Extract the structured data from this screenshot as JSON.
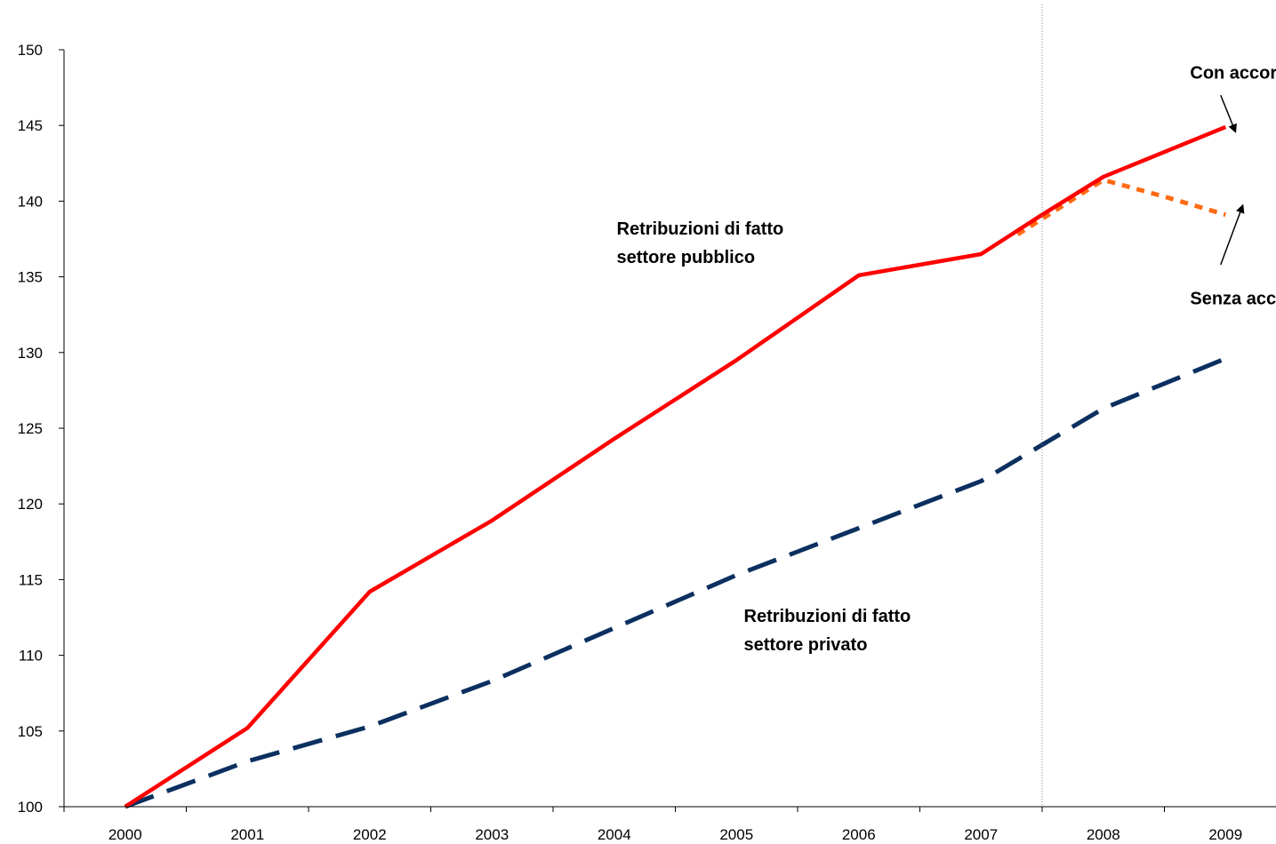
{
  "chart_data": {
    "type": "line",
    "categories": [
      "2000",
      "2001",
      "2002",
      "2003",
      "2004",
      "2005",
      "2006",
      "2007",
      "2008",
      "2009"
    ],
    "ylim": [
      100,
      150
    ],
    "yticks": [
      100,
      105,
      110,
      115,
      120,
      125,
      130,
      135,
      140,
      145,
      150
    ],
    "grid": false,
    "series": [
      {
        "id": "pubblico",
        "color": "#ff0000",
        "style": "solid",
        "x": [
          0,
          1,
          2,
          3,
          4,
          5,
          6,
          7,
          7.5,
          8,
          9
        ],
        "values": [
          100,
          105.2,
          114.2,
          118.9,
          124.3,
          129.5,
          135.1,
          136.5,
          139.1,
          141.6,
          144.9
        ]
      },
      {
        "id": "senza-accordo",
        "color": "#ff6a13",
        "style": "dotted",
        "x": [
          7.3,
          8,
          8.5,
          9
        ],
        "values": [
          137.8,
          141.4,
          140.3,
          139.1
        ]
      },
      {
        "id": "privato",
        "color": "#0b3060",
        "style": "dashed",
        "x": [
          0,
          1,
          2,
          3,
          4,
          5,
          6,
          7,
          8,
          9
        ],
        "values": [
          100,
          103,
          105.3,
          108.3,
          111.8,
          115.3,
          118.4,
          121.5,
          126.3,
          129.6
        ]
      }
    ],
    "vline": {
      "x": 7.5,
      "style": "dotted"
    },
    "annotations": [
      {
        "id": "pubblico-label",
        "lines": [
          "Retribuzioni di fatto",
          "settore pubblico"
        ],
        "x": 4.02,
        "y": 137.8,
        "anchor": "start"
      },
      {
        "id": "privato-label",
        "lines": [
          "Retribuzioni di fatto",
          "settore privato"
        ],
        "x": 5.06,
        "y": 112.2,
        "anchor": "start"
      },
      {
        "id": "con-accordo-label",
        "lines": [
          "Con accordo"
        ],
        "x": 8.71,
        "y": 148.1,
        "anchor": "start"
      },
      {
        "id": "senza-accordo-label",
        "lines": [
          "Senza accordo"
        ],
        "x": 8.71,
        "y": 133.2,
        "anchor": "start"
      }
    ],
    "arrows": [
      {
        "id": "con-accordo-arrow",
        "from": [
          8.96,
          147.0
        ],
        "to": [
          9.08,
          144.6
        ]
      },
      {
        "id": "senza-accordo-arrow",
        "from": [
          8.96,
          135.8
        ],
        "to": [
          9.14,
          139.7
        ]
      }
    ]
  }
}
